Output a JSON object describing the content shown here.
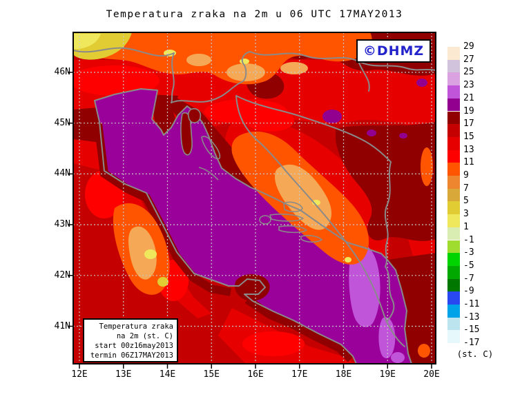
{
  "title": "Temperatura zraka na 2m u 06 UTC 17MAY2013",
  "logo": {
    "text": "©DHMZ",
    "color": "#2323CC"
  },
  "axes": {
    "lat_labels": [
      "46N",
      "45N",
      "44N",
      "43N",
      "42N",
      "41N"
    ],
    "lon_labels": [
      "12E",
      "13E",
      "14E",
      "15E",
      "16E",
      "17E",
      "18E",
      "19E",
      "20E"
    ]
  },
  "info_box": {
    "line1": "Temperatura zraka",
    "line2": "na 2m (st. C)",
    "line3": "start 00z16may2013",
    "line4": "termin 06Z17MAY2013"
  },
  "legend": {
    "unit": "(st. C)",
    "entries": [
      {
        "value": "29",
        "color": "#FCE9D2"
      },
      {
        "value": "27",
        "color": "#D2C3DC"
      },
      {
        "value": "25",
        "color": "#DAA2E0"
      },
      {
        "value": "23",
        "color": "#C155D9"
      },
      {
        "value": "21",
        "color": "#91008F"
      },
      {
        "value": "19",
        "color": "#900000"
      },
      {
        "value": "17",
        "color": "#C40000"
      },
      {
        "value": "15",
        "color": "#E60000"
      },
      {
        "value": "13",
        "color": "#FF0000"
      },
      {
        "value": "11",
        "color": "#FF5500"
      },
      {
        "value": "9",
        "color": "#EE8630"
      },
      {
        "value": "7",
        "color": "#D8A838"
      },
      {
        "value": "5",
        "color": "#E2CC34"
      },
      {
        "value": "3",
        "color": "#F0E85C"
      },
      {
        "value": "1",
        "color": "#D9ECB2"
      },
      {
        "value": "-1",
        "color": "#A0DC30"
      },
      {
        "value": "-3",
        "color": "#00D400"
      },
      {
        "value": "-5",
        "color": "#00A800"
      },
      {
        "value": "-7",
        "color": "#007800"
      },
      {
        "value": "-9",
        "color": "#2A48F0"
      },
      {
        "value": "-11",
        "color": "#00A2E8"
      },
      {
        "value": "-13",
        "color": "#BCE4EE"
      },
      {
        "value": "-15",
        "color": "#E6F8FC"
      },
      {
        "value": "-17",
        "color": ""
      }
    ]
  },
  "map_colors": {
    "sea_fill": "#9A009A",
    "coastal_light_purple": "#C155D9",
    "land_base_red": "#C40000",
    "dark_red": "#900000",
    "bright_red": "#FF0000",
    "orange": "#FF5500",
    "apricot": "#F5A855",
    "yellow": "#E2CC34",
    "coastline_gray": "#8A8A8A"
  }
}
